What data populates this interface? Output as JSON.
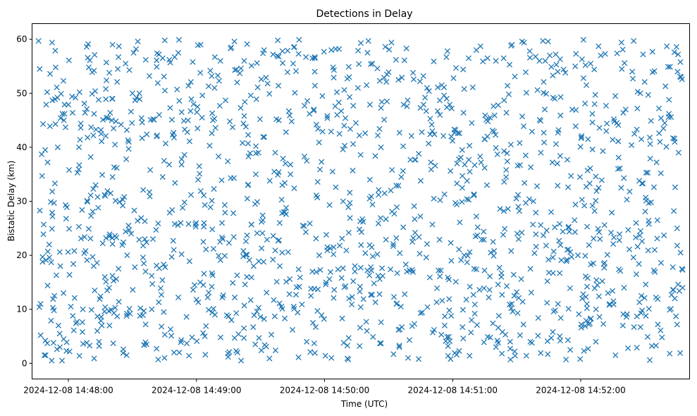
{
  "chart_data": {
    "type": "scatter",
    "title": "Detections in Delay",
    "xlabel": "Time (UTC)",
    "ylabel": "Bistatic Delay (km)",
    "marker": "x",
    "color": "#1f77b4",
    "grid": false,
    "xlim": [
      "2024-12-08 14:47:43",
      "2024-12-08 14:52:51"
    ],
    "ylim": [
      -2.9,
      62.9
    ],
    "x_ticks": [
      "2024-12-08 14:48:00",
      "2024-12-08 14:49:00",
      "2024-12-08 14:50:00",
      "2024-12-08 14:51:00",
      "2024-12-08 14:52:00"
    ],
    "y_ticks": [
      0,
      10,
      20,
      30,
      40,
      50,
      60
    ],
    "x_range": [
      "2024-12-08 14:47:46",
      "2024-12-08 14:52:48"
    ],
    "y_range": [
      0.5,
      59.9
    ],
    "point_count": 1500,
    "points": []
  }
}
